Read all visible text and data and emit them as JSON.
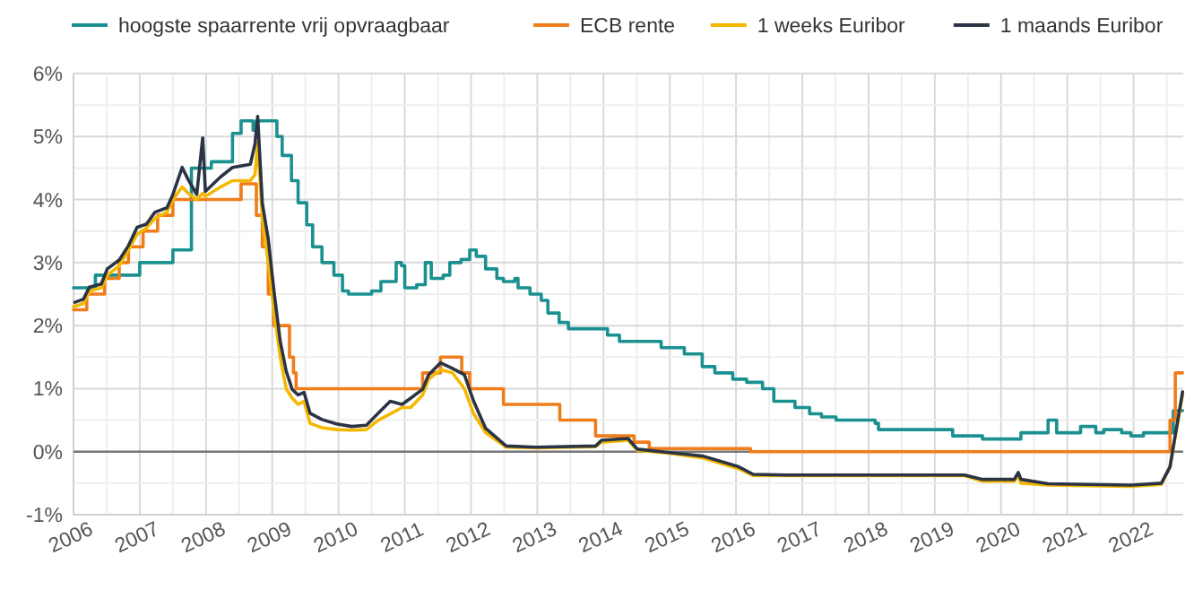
{
  "chart_data": {
    "type": "line",
    "xlim": [
      2006,
      2022.75
    ],
    "ylim": [
      -1,
      6
    ],
    "xticks": [
      2006,
      {
        "value": 2006.5,
        "label": null
      },
      2007,
      {
        "value": 2007.5,
        "label": null
      },
      2008,
      {
        "value": 2008.5,
        "label": null
      },
      2009,
      {
        "value": 2009.5,
        "label": null
      },
      2010,
      {
        "value": 2010.5,
        "label": null
      },
      2011,
      {
        "value": 2011.5,
        "label": null
      },
      2012,
      {
        "value": 2012.5,
        "label": null
      },
      2013,
      {
        "value": 2013.5,
        "label": null
      },
      2014,
      {
        "value": 2014.5,
        "label": null
      },
      2015,
      {
        "value": 2015.5,
        "label": null
      },
      2016,
      {
        "value": 2016.5,
        "label": null
      },
      2017,
      {
        "value": 2017.5,
        "label": null
      },
      2018,
      {
        "value": 2018.5,
        "label": null
      },
      2019,
      {
        "value": 2019.5,
        "label": null
      },
      2020,
      {
        "value": 2020.5,
        "label": null
      },
      2021,
      {
        "value": 2021.5,
        "label": null
      },
      2022,
      {
        "value": 2022.5,
        "label": null
      }
    ],
    "yticks": [
      {
        "value": -1,
        "label": "-1%"
      },
      {
        "value": -0.5,
        "label": null
      },
      {
        "value": 0,
        "label": "0%"
      },
      {
        "value": 0.5,
        "label": null
      },
      {
        "value": 1,
        "label": "1%"
      },
      {
        "value": 1.5,
        "label": null
      },
      {
        "value": 2,
        "label": "2%"
      },
      {
        "value": 2.5,
        "label": null
      },
      {
        "value": 3,
        "label": "3%"
      },
      {
        "value": 3.5,
        "label": null
      },
      {
        "value": 4,
        "label": "4%"
      },
      {
        "value": 4.5,
        "label": null
      },
      {
        "value": 5,
        "label": "5%"
      },
      {
        "value": 5.5,
        "label": null
      },
      {
        "value": 6,
        "label": "6%"
      }
    ],
    "grid": true,
    "legend": "top",
    "line_style": "solid",
    "marker": "none",
    "ref_lines": [
      {
        "axis": "y",
        "value": 0,
        "color": "#777777"
      }
    ],
    "series": [
      {
        "name": "hoogste spaarrente vrij opvraagbaar",
        "type": "step",
        "color": "#1a9090",
        "x": [
          2006,
          2006.33,
          2007.0,
          2007.5,
          2007.78,
          2008.08,
          2008.4,
          2008.53,
          2008.71,
          2008.76,
          2009.07,
          2009.15,
          2009.29,
          2009.39,
          2009.52,
          2009.61,
          2009.75,
          2009.93,
          2010.06,
          2010.15,
          2010.5,
          2010.64,
          2010.87,
          2010.95,
          2011.0,
          2011.18,
          2011.31,
          2011.4,
          2011.58,
          2011.68,
          2011.85,
          2011.98,
          2012.08,
          2012.22,
          2012.39,
          2012.49,
          2012.66,
          2012.71,
          2012.89,
          2013.06,
          2013.16,
          2013.33,
          2013.47,
          2014.06,
          2014.24,
          2014.87,
          2015.22,
          2015.49,
          2015.68,
          2015.95,
          2016.16,
          2016.4,
          2016.57,
          2016.89,
          2017.11,
          2017.29,
          2017.51,
          2018.1,
          2018.15,
          2019.27,
          2019.72,
          2020.3,
          2020.71,
          2020.84,
          2021.2,
          2021.43,
          2021.55,
          2021.82,
          2021.96,
          2022.15,
          2022.6,
          2022.74
        ],
        "values": [
          2.6,
          2.8,
          3.0,
          3.2,
          4.5,
          4.6,
          5.05,
          5.25,
          5.1,
          5.25,
          5.0,
          4.7,
          4.3,
          3.95,
          3.6,
          3.25,
          3.0,
          2.8,
          2.55,
          2.5,
          2.55,
          2.7,
          3.0,
          2.95,
          2.6,
          2.65,
          3.0,
          2.75,
          2.8,
          3.0,
          3.05,
          3.2,
          3.1,
          2.9,
          2.75,
          2.7,
          2.75,
          2.6,
          2.5,
          2.4,
          2.2,
          2.05,
          1.95,
          1.85,
          1.75,
          1.65,
          1.55,
          1.35,
          1.25,
          1.15,
          1.1,
          1.0,
          0.8,
          0.7,
          0.6,
          0.55,
          0.5,
          0.45,
          0.35,
          0.25,
          0.2,
          0.3,
          0.5,
          0.3,
          0.4,
          0.3,
          0.35,
          0.3,
          0.25,
          0.3,
          0.65,
          0.65
        ]
      },
      {
        "name": "ECB rente",
        "type": "step",
        "color": "#f07d1a",
        "x": [
          2006,
          2006.2,
          2006.47,
          2006.69,
          2006.83,
          2007.05,
          2007.27,
          2007.5,
          2008.53,
          2008.76,
          2008.85,
          2008.94,
          2009.02,
          2009.26,
          2009.32,
          2009.36,
          2011.27,
          2011.54,
          2011.86,
          2011.98,
          2012.49,
          2013.34,
          2013.88,
          2014.46,
          2014.69,
          2016.22,
          2022.55,
          2022.63,
          2022.74
        ],
        "values": [
          2.25,
          2.5,
          2.75,
          3.0,
          3.25,
          3.5,
          3.75,
          4.0,
          4.25,
          3.75,
          3.25,
          2.5,
          2.0,
          1.5,
          1.25,
          1.0,
          1.25,
          1.5,
          1.25,
          1.0,
          0.75,
          0.5,
          0.25,
          0.15,
          0.05,
          0.0,
          0.5,
          1.25,
          1.25
        ]
      },
      {
        "name": "1 weeks Euribor",
        "type": "line",
        "color": "#f5b800",
        "x": [
          2006.0,
          2006.15,
          2006.24,
          2006.42,
          2006.51,
          2006.69,
          2006.83,
          2006.96,
          2007.1,
          2007.23,
          2007.41,
          2007.5,
          2007.64,
          2007.73,
          2007.86,
          2007.95,
          2007.99,
          2008.22,
          2008.4,
          2008.67,
          2008.74,
          2008.78,
          2008.85,
          2008.94,
          2009.03,
          2009.12,
          2009.21,
          2009.3,
          2009.39,
          2009.48,
          2009.57,
          2009.75,
          2009.97,
          2010.2,
          2010.42,
          2010.6,
          2010.78,
          2010.96,
          2011.09,
          2011.27,
          2011.36,
          2011.54,
          2011.72,
          2011.9,
          2012.04,
          2012.22,
          2012.53,
          2012.98,
          2013.88,
          2013.97,
          2014.37,
          2014.51,
          2014.96,
          2015.5,
          2016.04,
          2016.26,
          2016.75,
          2019.45,
          2019.72,
          2020.2,
          2020.26,
          2020.3,
          2020.71,
          2021.96,
          2022.42,
          2022.55,
          2022.64,
          2022.74
        ],
        "values": [
          2.3,
          2.35,
          2.55,
          2.6,
          2.8,
          2.95,
          3.2,
          3.45,
          3.55,
          3.7,
          3.8,
          4.0,
          4.2,
          4.1,
          4.0,
          4.1,
          4.05,
          4.2,
          4.3,
          4.3,
          4.4,
          4.9,
          3.7,
          3.0,
          2.2,
          1.5,
          1.0,
          0.85,
          0.75,
          0.8,
          0.45,
          0.38,
          0.35,
          0.34,
          0.35,
          0.5,
          0.6,
          0.7,
          0.7,
          0.9,
          1.15,
          1.3,
          1.25,
          1.0,
          0.6,
          0.3,
          0.07,
          0.06,
          0.08,
          0.15,
          0.18,
          0.02,
          -0.02,
          -0.1,
          -0.27,
          -0.38,
          -0.38,
          -0.38,
          -0.47,
          -0.47,
          -0.38,
          -0.5,
          -0.53,
          -0.55,
          -0.52,
          -0.25,
          0.3,
          0.9
        ]
      },
      {
        "name": "1 maands Euribor",
        "type": "line",
        "color": "#2b3445",
        "x": [
          2006.02,
          2006.15,
          2006.24,
          2006.42,
          2006.51,
          2006.69,
          2006.83,
          2006.96,
          2007.1,
          2007.23,
          2007.41,
          2007.5,
          2007.64,
          2007.73,
          2007.86,
          2007.95,
          2007.99,
          2008.22,
          2008.4,
          2008.67,
          2008.74,
          2008.78,
          2008.85,
          2008.94,
          2009.03,
          2009.12,
          2009.21,
          2009.3,
          2009.39,
          2009.48,
          2009.57,
          2009.75,
          2009.97,
          2010.2,
          2010.42,
          2010.6,
          2010.78,
          2010.96,
          2011.09,
          2011.27,
          2011.36,
          2011.54,
          2011.72,
          2011.9,
          2012.04,
          2012.22,
          2012.53,
          2012.98,
          2013.88,
          2013.97,
          2014.37,
          2014.51,
          2014.96,
          2015.5,
          2016.04,
          2016.26,
          2016.75,
          2019.45,
          2019.72,
          2020.2,
          2020.26,
          2020.3,
          2020.71,
          2021.96,
          2022.42,
          2022.55,
          2022.64,
          2022.74
        ],
        "values": [
          2.37,
          2.42,
          2.61,
          2.66,
          2.9,
          3.04,
          3.27,
          3.56,
          3.61,
          3.8,
          3.87,
          4.08,
          4.51,
          4.32,
          4.08,
          4.98,
          4.13,
          4.36,
          4.51,
          4.56,
          4.89,
          5.32,
          3.94,
          3.37,
          2.51,
          1.75,
          1.28,
          0.99,
          0.9,
          0.94,
          0.61,
          0.51,
          0.44,
          0.4,
          0.42,
          0.61,
          0.8,
          0.75,
          0.85,
          0.99,
          1.22,
          1.41,
          1.32,
          1.22,
          0.8,
          0.37,
          0.09,
          0.07,
          0.09,
          0.18,
          0.21,
          0.04,
          -0.01,
          -0.07,
          -0.24,
          -0.36,
          -0.37,
          -0.37,
          -0.44,
          -0.44,
          -0.33,
          -0.44,
          -0.51,
          -0.53,
          -0.5,
          -0.24,
          0.33,
          0.95
        ]
      }
    ]
  }
}
